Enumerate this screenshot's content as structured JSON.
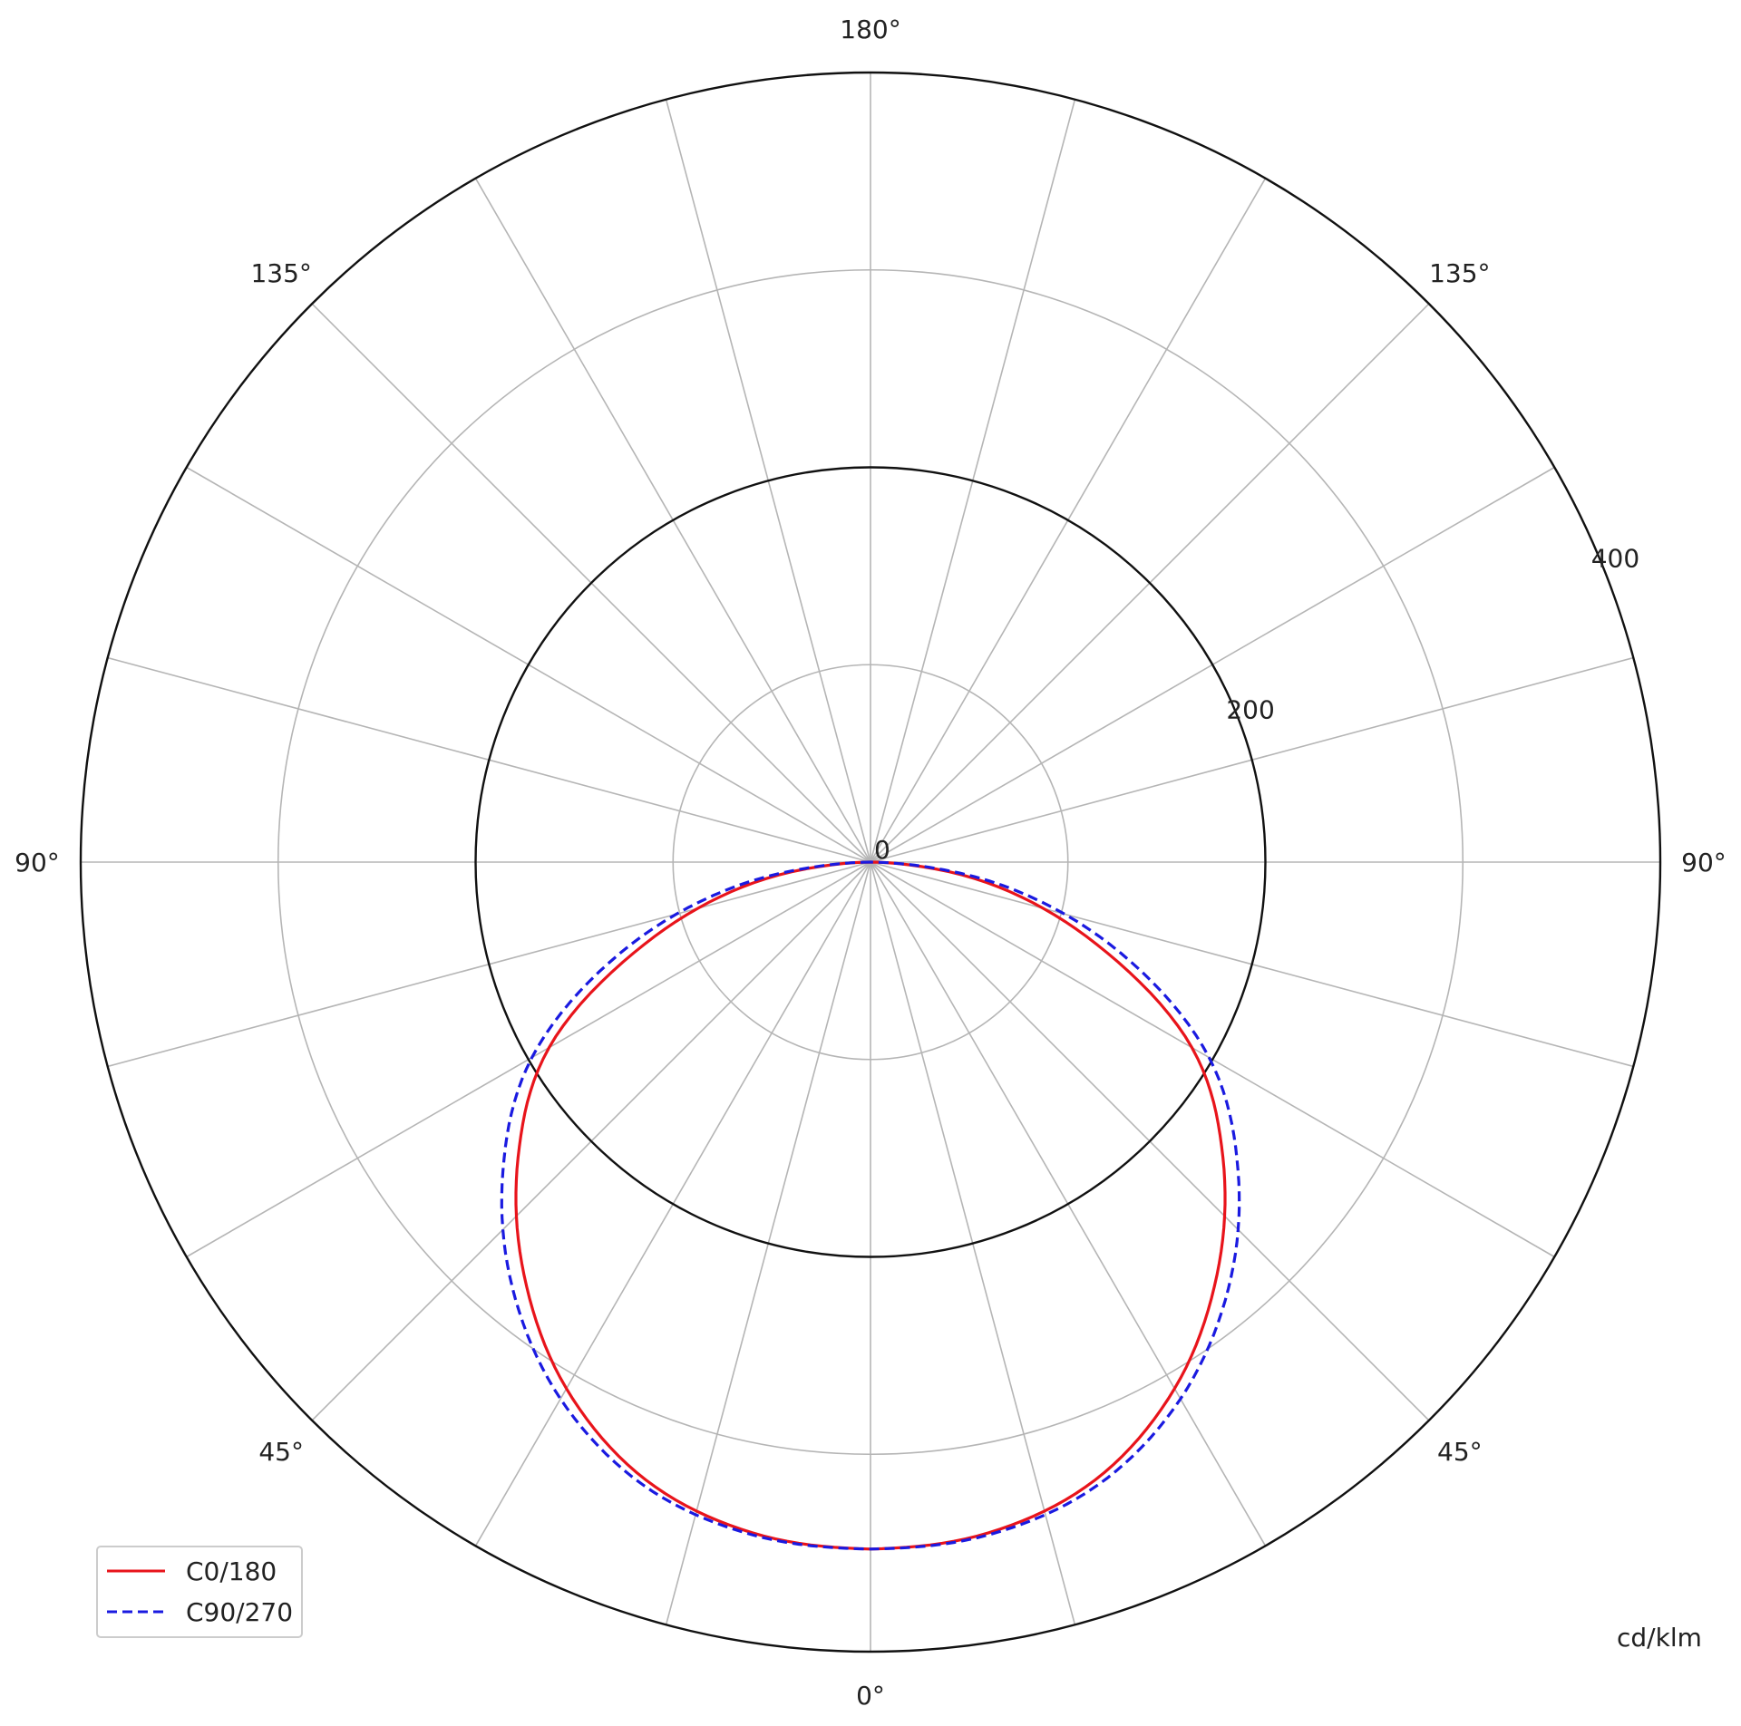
{
  "chart_data": {
    "type": "polar-line",
    "unit_label": "cd/klm",
    "radial_axis": {
      "range": [
        0,
        400
      ],
      "rings": [
        100,
        200,
        300,
        400
      ],
      "labeled_ticks": [
        "0",
        "200",
        "400"
      ],
      "bold_rings": [
        200,
        400
      ]
    },
    "angular_axis": {
      "zero_direction": "down",
      "symmetric": true,
      "spoke_step_deg": 15,
      "tick_labels": [
        {
          "text": "180°",
          "angle": 180,
          "side": "center"
        },
        {
          "text": "135°",
          "angle": 135,
          "side": "left"
        },
        {
          "text": "135°",
          "angle": 135,
          "side": "right"
        },
        {
          "text": "90°",
          "angle": 90,
          "side": "left"
        },
        {
          "text": "90°",
          "angle": 90,
          "side": "right"
        },
        {
          "text": "45°",
          "angle": 45,
          "side": "left"
        },
        {
          "text": "45°",
          "angle": 45,
          "side": "right"
        },
        {
          "text": "0°",
          "angle": 0,
          "side": "center"
        }
      ]
    },
    "grid": true,
    "legend_position": "bottom-left",
    "gamma": [
      0,
      10,
      20,
      30,
      40,
      50,
      60,
      70,
      80,
      90
    ],
    "series": [
      {
        "name": "C0/180",
        "color": "#e8141b",
        "dash": "solid",
        "values": [
          348,
          345,
          333,
          308,
          273,
          233,
          188,
          122,
          60,
          0
        ]
      },
      {
        "name": "C90/270",
        "color": "#1a1ae0",
        "dash": "dashed",
        "values": [
          348,
          346,
          336,
          314,
          282,
          243,
          198,
          135,
          68,
          0
        ]
      }
    ]
  }
}
